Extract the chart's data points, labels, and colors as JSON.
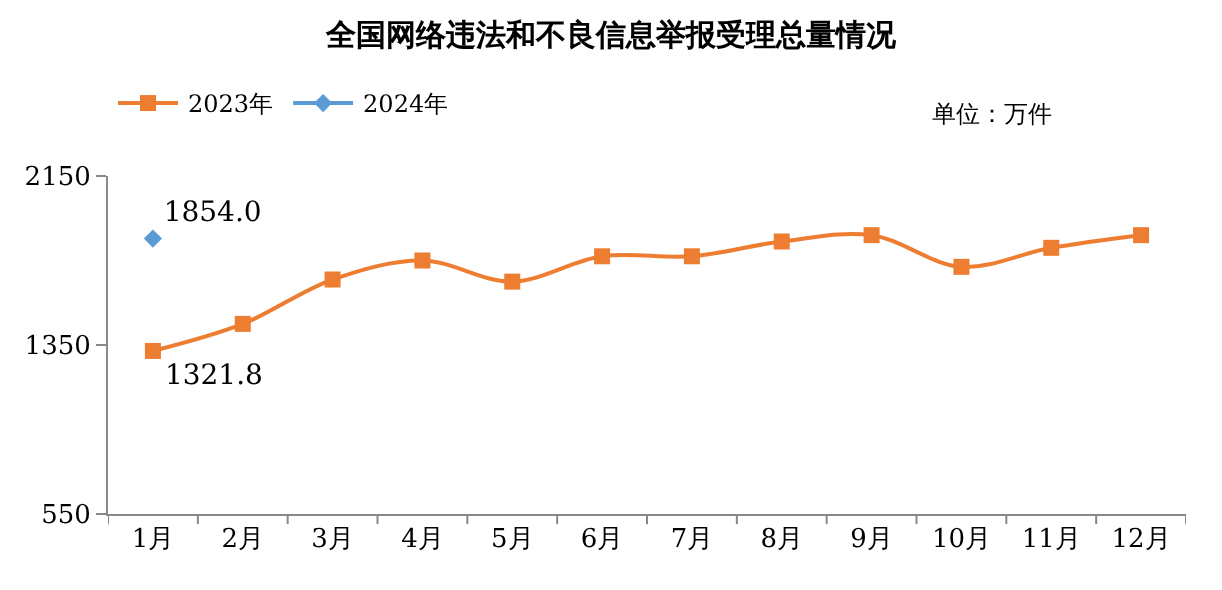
{
  "chart_data": {
    "type": "line",
    "title": "全国网络违法和不良信息举报受理总量情况",
    "annotations": [
      "单位：万件"
    ],
    "categories": [
      "1月",
      "2月",
      "3月",
      "4月",
      "5月",
      "6月",
      "7月",
      "8月",
      "9月",
      "10月",
      "11月",
      "12月"
    ],
    "series": [
      {
        "name": "2023年",
        "color": "#ed7d31",
        "marker": "square",
        "values": [
          1321.8,
          1450,
          1660,
          1750,
          1650,
          1770,
          1770,
          1840,
          1870,
          1720,
          1810,
          1870
        ],
        "value_labels": [
          "1321.8",
          null,
          null,
          null,
          null,
          null,
          null,
          null,
          null,
          null,
          null,
          null
        ]
      },
      {
        "name": "2024年",
        "color": "#5b9bd5",
        "marker": "diamond",
        "values": [
          1854.0,
          null,
          null,
          null,
          null,
          null,
          null,
          null,
          null,
          null,
          null,
          null
        ],
        "value_labels": [
          "1854.0",
          null,
          null,
          null,
          null,
          null,
          null,
          null,
          null,
          null,
          null,
          null
        ]
      }
    ],
    "ylim": [
      550,
      2150
    ],
    "yticks": [
      550,
      1350,
      2150
    ],
    "legend": "top left"
  }
}
